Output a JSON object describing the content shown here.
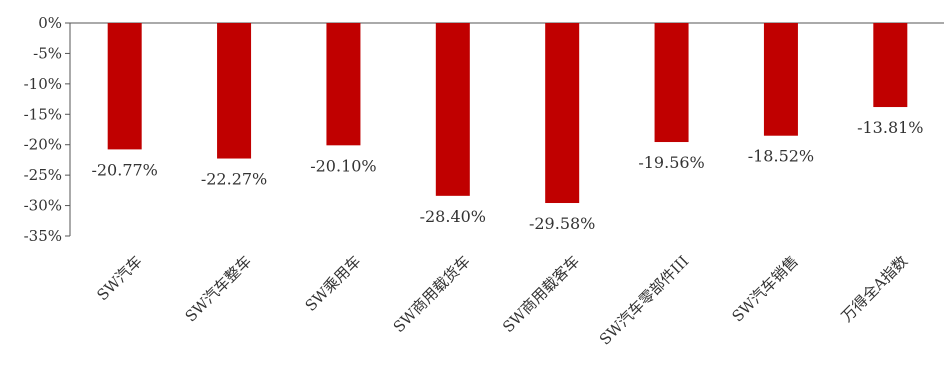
{
  "chart_data": {
    "type": "bar",
    "categories": [
      "SW汽车",
      "SW汽车整车",
      "SW乘用车",
      "SW商用载货车",
      "SW商用载客车",
      "SW汽车零部件III",
      "SW汽车销售",
      "万得全A指数"
    ],
    "values": [
      -20.77,
      -22.27,
      -20.1,
      -28.4,
      -29.58,
      -19.56,
      -18.52,
      -13.81
    ],
    "value_labels": [
      "-20.77%",
      "-22.27%",
      "-20.10%",
      "-28.40%",
      "-29.58%",
      "-19.56%",
      "-18.52%",
      "-13.81%"
    ],
    "ylim": [
      -35,
      0
    ],
    "yticks": [
      0,
      -5,
      -10,
      -15,
      -20,
      -25,
      -30,
      -35
    ],
    "ytick_labels": [
      "0%",
      "-5%",
      "-10%",
      "-15%",
      "-20%",
      "-25%",
      "-30%",
      "-35%"
    ],
    "title": "",
    "xlabel": "",
    "ylabel": "",
    "grid": false,
    "bar_color": "#C00000"
  }
}
